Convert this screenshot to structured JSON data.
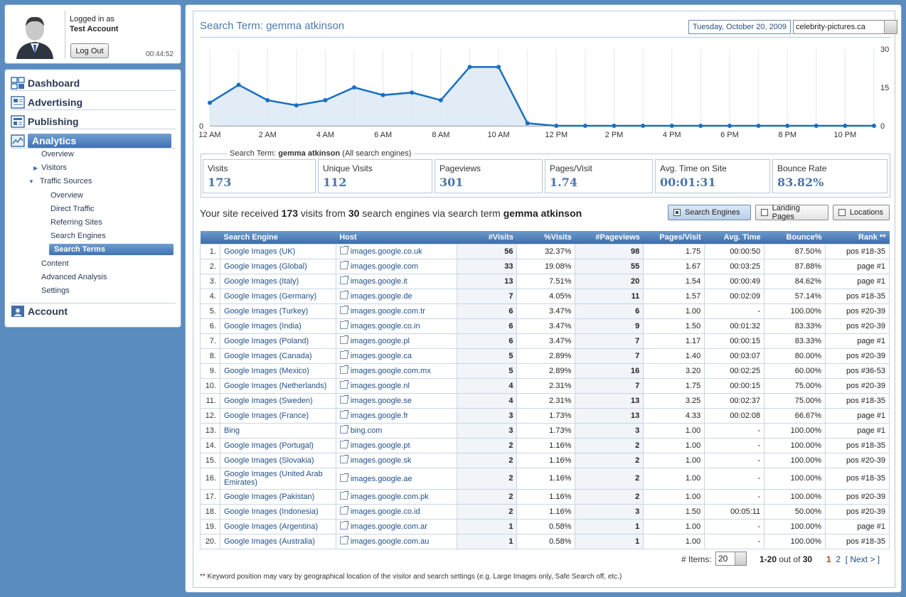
{
  "user": {
    "logged_in_as": "Logged in as",
    "account_name": "Test Account",
    "logout_label": "Log Out",
    "session_timer": "00:44:52"
  },
  "nav": {
    "main": [
      {
        "label": "Dashboard",
        "icon": "dashboard-icon"
      },
      {
        "label": "Advertising",
        "icon": "advertising-icon"
      },
      {
        "label": "Publishing",
        "icon": "publishing-icon"
      },
      {
        "label": "Analytics",
        "icon": "analytics-icon",
        "active": true
      },
      {
        "label": "Account",
        "icon": "account-icon"
      }
    ],
    "analytics_sub": [
      "Overview",
      "Visitors",
      "Traffic Sources",
      "Content",
      "Advanced Analysis",
      "Settings"
    ],
    "traffic_sub": [
      "Overview",
      "Direct Traffic",
      "Referring Sites",
      "Search Engines",
      "Search Terms"
    ]
  },
  "header": {
    "title": "Search Term: gemma atkinson",
    "date": "Tuesday, October 20, 2009",
    "site": "celebrity-pictures.ca"
  },
  "chart_data": {
    "type": "area",
    "x": [
      "12 AM",
      "1 AM",
      "2 AM",
      "3 AM",
      "4 AM",
      "5 AM",
      "6 AM",
      "7 AM",
      "8 AM",
      "9 AM",
      "10 AM",
      "11 AM",
      "12 PM",
      "1 PM",
      "2 PM",
      "3 PM",
      "4 PM",
      "5 PM",
      "6 PM",
      "7 PM",
      "8 PM",
      "9 PM",
      "10 PM",
      "11 PM"
    ],
    "values": [
      9,
      16,
      10,
      8,
      10,
      15,
      12,
      13,
      10,
      23,
      23,
      1,
      0,
      0,
      0,
      0,
      0,
      0,
      0,
      0,
      0,
      0,
      0,
      0
    ],
    "x_tick_labels": [
      "12 AM",
      "2 AM",
      "4 AM",
      "6 AM",
      "8 AM",
      "10 AM",
      "12 PM",
      "2 PM",
      "4 PM",
      "6 PM",
      "8 PM",
      "10 PM"
    ],
    "y_right_ticks": [
      "30",
      "15",
      "0"
    ],
    "y_left_tick": "0",
    "ylim": [
      0,
      30
    ],
    "grid": true,
    "color": "#1a6fc2"
  },
  "stats": {
    "legend_prefix": "Search Term:",
    "legend_term": "gemma atkinson",
    "legend_suffix": "(All search engines)",
    "cards": [
      {
        "label": "Visits",
        "value": "173"
      },
      {
        "label": "Unique Visits",
        "value": "112"
      },
      {
        "label": "Pageviews",
        "value": "301"
      },
      {
        "label": "Pages/Visit",
        "value": "1.74"
      },
      {
        "label": "Avg. Time on Site",
        "value": "00:01:31"
      },
      {
        "label": "Bounce Rate",
        "value": "83.82%"
      }
    ]
  },
  "summary": {
    "p1": "Your site received",
    "visits": "173",
    "p2": "visits from",
    "engines": "30",
    "p3": "search engines via search term",
    "term": "gemma atkinson"
  },
  "toggles": [
    {
      "label": "Search Engines",
      "active": true
    },
    {
      "label": "Landing Pages",
      "active": false
    },
    {
      "label": "Locations",
      "active": false
    }
  ],
  "table": {
    "columns": [
      "",
      "Search Engine",
      "Host",
      "#Visits",
      "%Visits",
      "#Pageviews",
      "Pages/Visit",
      "Avg. Time",
      "Bounce%",
      "Rank **"
    ],
    "rows": [
      [
        "1.",
        "Google Images (UK)",
        "images.google.co.uk",
        "56",
        "32.37%",
        "98",
        "1.75",
        "00:00:50",
        "87.50%",
        "pos #18-35"
      ],
      [
        "2.",
        "Google Images (Global)",
        "images.google.com",
        "33",
        "19.08%",
        "55",
        "1.67",
        "00:03:25",
        "87.88%",
        "page #1"
      ],
      [
        "3.",
        "Google Images (Italy)",
        "images.google.it",
        "13",
        "7.51%",
        "20",
        "1.54",
        "00:00:49",
        "84.62%",
        "page #1"
      ],
      [
        "4.",
        "Google Images (Germany)",
        "images.google.de",
        "7",
        "4.05%",
        "11",
        "1.57",
        "00:02:09",
        "57.14%",
        "pos #18-35"
      ],
      [
        "5.",
        "Google Images (Turkey)",
        "images.google.com.tr",
        "6",
        "3.47%",
        "6",
        "1.00",
        "-",
        "100.00%",
        "pos #20-39"
      ],
      [
        "6.",
        "Google Images (India)",
        "images.google.co.in",
        "6",
        "3.47%",
        "9",
        "1.50",
        "00:01:32",
        "83.33%",
        "pos #20-39"
      ],
      [
        "7.",
        "Google Images (Poland)",
        "images.google.pl",
        "6",
        "3.47%",
        "7",
        "1.17",
        "00:00:15",
        "83.33%",
        "page #1"
      ],
      [
        "8.",
        "Google Images (Canada)",
        "images.google.ca",
        "5",
        "2.89%",
        "7",
        "1.40",
        "00:03:07",
        "80.00%",
        "pos #20-39"
      ],
      [
        "9.",
        "Google Images (Mexico)",
        "images.google.com.mx",
        "5",
        "2.89%",
        "16",
        "3.20",
        "00:02:25",
        "60.00%",
        "pos #36-53"
      ],
      [
        "10.",
        "Google Images (Netherlands)",
        "images.google.nl",
        "4",
        "2.31%",
        "7",
        "1.75",
        "00:00:15",
        "75.00%",
        "pos #20-39"
      ],
      [
        "11.",
        "Google Images (Sweden)",
        "images.google.se",
        "4",
        "2.31%",
        "13",
        "3.25",
        "00:02:37",
        "75.00%",
        "pos #18-35"
      ],
      [
        "12.",
        "Google Images (France)",
        "images.google.fr",
        "3",
        "1.73%",
        "13",
        "4.33",
        "00:02:08",
        "66.67%",
        "page #1"
      ],
      [
        "13.",
        "Bing",
        "bing.com",
        "3",
        "1.73%",
        "3",
        "1.00",
        "-",
        "100.00%",
        "page #1"
      ],
      [
        "14.",
        "Google Images (Portugal)",
        "images.google.pt",
        "2",
        "1.16%",
        "2",
        "1.00",
        "-",
        "100.00%",
        "pos #18-35"
      ],
      [
        "15.",
        "Google Images (Slovakia)",
        "images.google.sk",
        "2",
        "1.16%",
        "2",
        "1.00",
        "-",
        "100.00%",
        "pos #20-39"
      ],
      [
        "16.",
        "Google Images (United Arab Emirates)",
        "images.google.ae",
        "2",
        "1.16%",
        "2",
        "1.00",
        "-",
        "100.00%",
        "pos #18-35"
      ],
      [
        "17.",
        "Google Images (Pakistan)",
        "images.google.com.pk",
        "2",
        "1.16%",
        "2",
        "1.00",
        "-",
        "100.00%",
        "pos #20-39"
      ],
      [
        "18.",
        "Google Images (Indonesia)",
        "images.google.co.id",
        "2",
        "1.16%",
        "3",
        "1.50",
        "00:05:11",
        "50.00%",
        "pos #20-39"
      ],
      [
        "19.",
        "Google Images (Argentina)",
        "images.google.com.ar",
        "1",
        "0.58%",
        "1",
        "1.00",
        "-",
        "100.00%",
        "page #1"
      ],
      [
        "20.",
        "Google Images (Australia)",
        "images.google.com.au",
        "1",
        "0.58%",
        "1",
        "1.00",
        "-",
        "100.00%",
        "pos #18-35"
      ]
    ]
  },
  "pager": {
    "items_label": "# Items:",
    "items_value": "20",
    "range": "1-20",
    "range_suffix": "out of",
    "total": "30",
    "pages": [
      "1",
      "2"
    ],
    "next_label": "Next >"
  },
  "footnote": "** Keyword position may vary by geographical location of the visitor and search settings (e.g. Large Images only, Safe Search off, etc.)"
}
